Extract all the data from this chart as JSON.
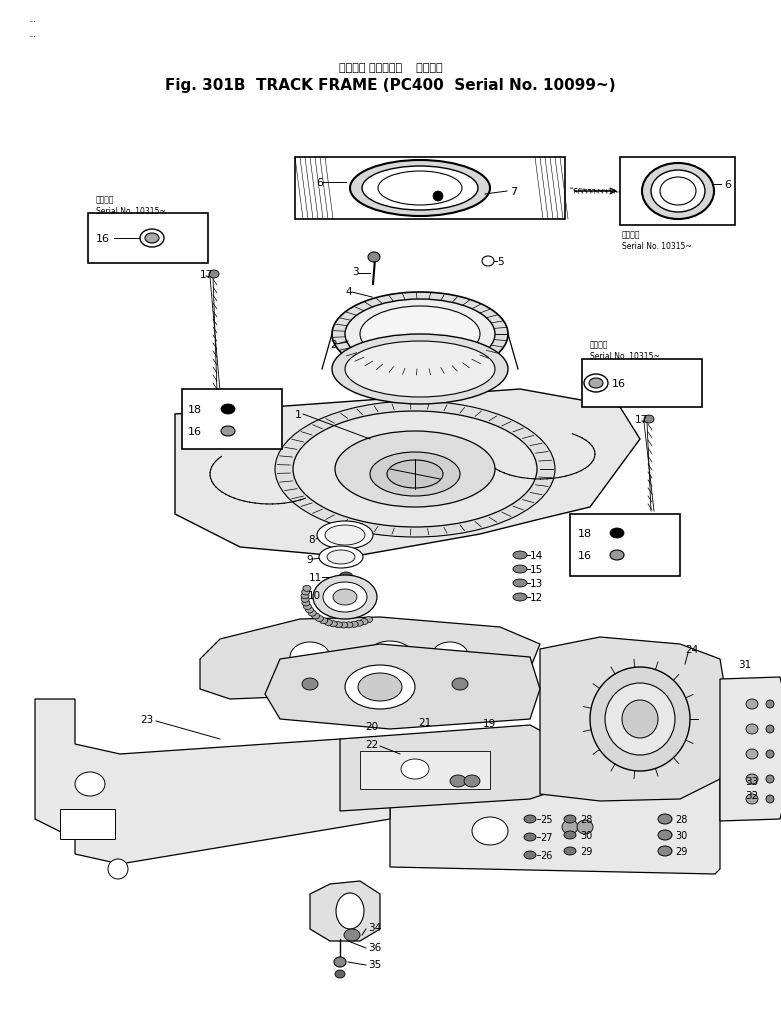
{
  "title_jp": "トラック フレーム（",
  "title_serial_jp": "適用号機",
  "title_en": "Fig. 301B  TRACK FRAME",
  "title_serial_en": "(PC400  Serial No. 10099~)",
  "background_color": "#ffffff",
  "fig_width": 7.81,
  "fig_height": 10.2,
  "dpi": 100,
  "text_color": "#000000"
}
